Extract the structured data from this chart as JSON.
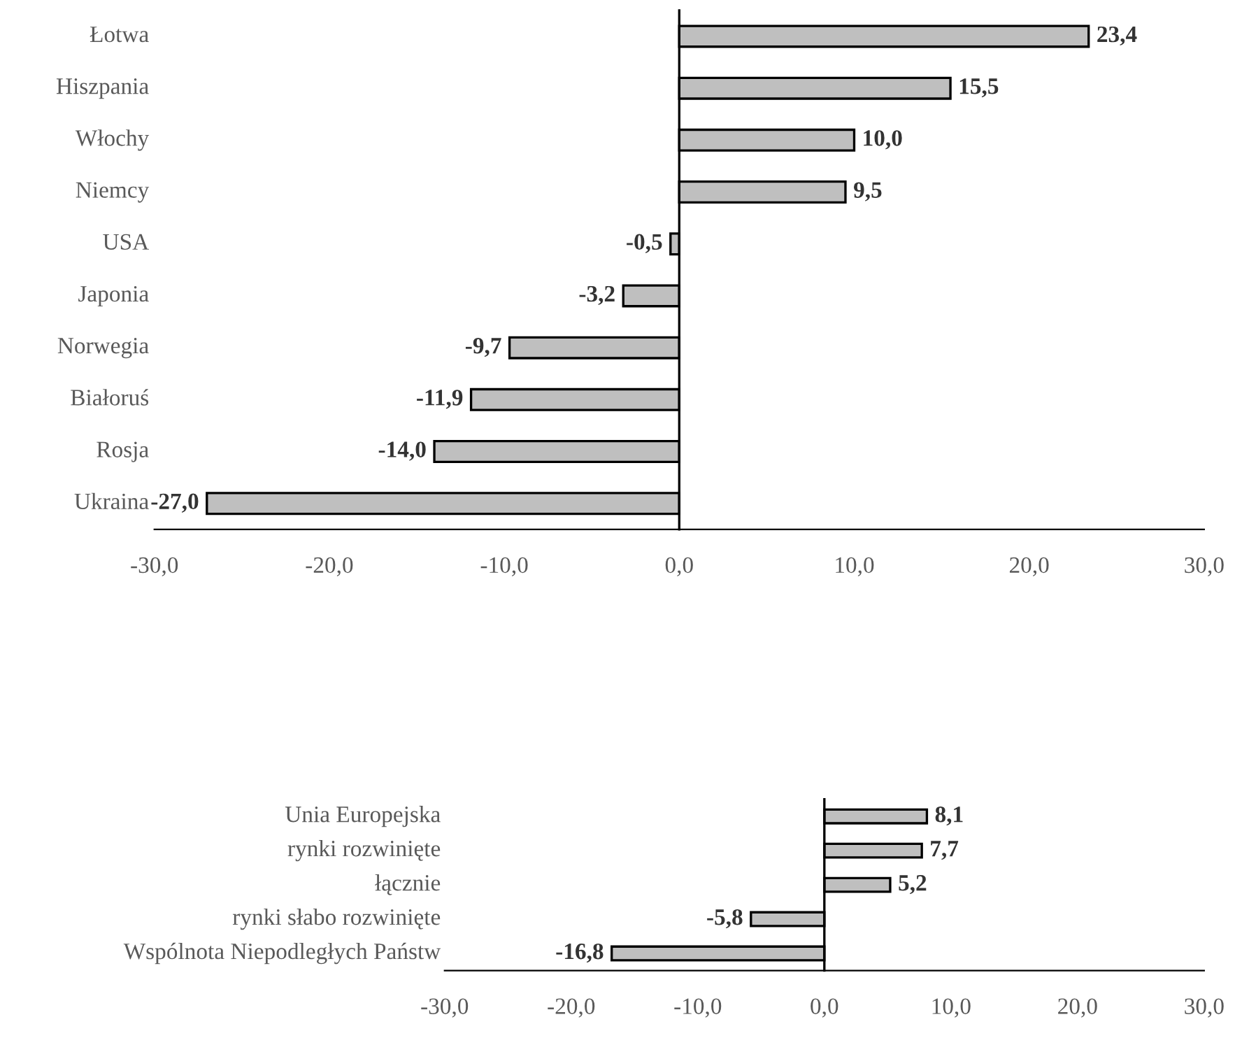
{
  "chart_data": [
    {
      "type": "bar",
      "orientation": "horizontal",
      "categories": [
        "Łotwa",
        "Hiszpania",
        "Włochy",
        "Niemcy",
        "USA",
        "Japonia",
        "Norwegia",
        "Białoruś",
        "Rosja",
        "Ukraina"
      ],
      "values": [
        23.4,
        15.5,
        10.0,
        9.5,
        -0.5,
        -3.2,
        -9.7,
        -11.9,
        -14.0,
        -27.0
      ],
      "color": "#bfbfbf",
      "xlim": [
        -30,
        30
      ],
      "xticks": [
        {
          "value": -30,
          "label": "-30,0"
        },
        {
          "value": -20,
          "label": "-20,0"
        },
        {
          "value": -10,
          "label": "-10,0"
        },
        {
          "value": 0,
          "label": "0,0"
        },
        {
          "value": 10,
          "label": "10,0"
        },
        {
          "value": 20,
          "label": "20,0"
        },
        {
          "value": 30,
          "label": "30,0"
        }
      ],
      "value_labels": [
        "23,4",
        "15,5",
        "10,0",
        "9,5",
        "-0,5",
        "-3,2",
        "-9,7",
        "-11,9",
        "-14,0",
        "-27,0"
      ],
      "legend": false
    },
    {
      "type": "bar",
      "orientation": "horizontal",
      "categories": [
        "Unia Europejska",
        "rynki rozwinięte",
        "łącznie",
        "rynki słabo rozwinięte",
        "Wspólnota Niepodległych Państw"
      ],
      "values": [
        8.1,
        7.7,
        5.2,
        -5.8,
        -16.8
      ],
      "color": "#bfbfbf",
      "xlim": [
        -30,
        30
      ],
      "xticks": [
        {
          "value": -30,
          "label": "-30,0"
        },
        {
          "value": -20,
          "label": "-20,0"
        },
        {
          "value": -10,
          "label": "-10,0"
        },
        {
          "value": 0,
          "label": "0,0"
        },
        {
          "value": 10,
          "label": "10,0"
        },
        {
          "value": 20,
          "label": "20,0"
        },
        {
          "value": 30,
          "label": "30,0"
        }
      ],
      "value_labels": [
        "8,1",
        "7,7",
        "5,2",
        "-5,8",
        "-16,8"
      ],
      "legend": false
    }
  ]
}
